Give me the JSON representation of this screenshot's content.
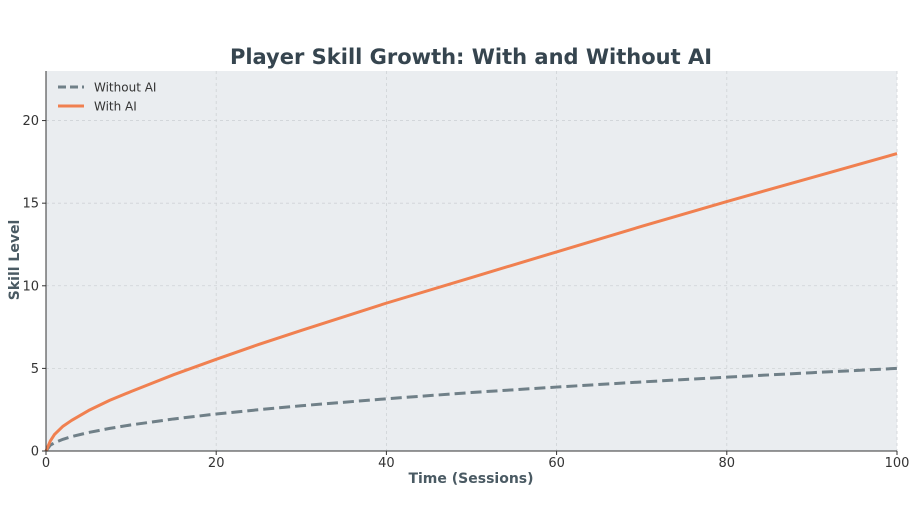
{
  "chart_data": {
    "type": "line",
    "title": "Player Skill Growth: With and Without AI",
    "xlabel": "Time (Sessions)",
    "ylabel": "Skill Level",
    "xlim": [
      0,
      100
    ],
    "ylim": [
      0,
      23
    ],
    "xticks": [
      0,
      20,
      40,
      60,
      80,
      100
    ],
    "yticks": [
      0,
      5,
      10,
      15,
      20
    ],
    "grid": true,
    "legend_position": "top-left",
    "background_color": "#eaedf0",
    "x": [
      0,
      0.5,
      1,
      2,
      3,
      5,
      7.5,
      10,
      15,
      20,
      25,
      30,
      40,
      50,
      60,
      70,
      80,
      90,
      100
    ],
    "series": [
      {
        "name": "Without AI",
        "style": "dashed",
        "color": "#708088",
        "values": [
          0,
          0.35,
          0.5,
          0.71,
          0.87,
          1.12,
          1.37,
          1.58,
          1.94,
          2.24,
          2.5,
          2.74,
          3.16,
          3.54,
          3.87,
          4.18,
          4.47,
          4.74,
          5.0
        ]
      },
      {
        "name": "With AI",
        "style": "solid",
        "color": "#f08050",
        "values": [
          0,
          0.6,
          1.0,
          1.5,
          1.85,
          2.45,
          3.07,
          3.6,
          4.62,
          5.55,
          6.45,
          7.3,
          8.95,
          10.5,
          12.05,
          13.6,
          15.1,
          16.55,
          18.0
        ]
      }
    ]
  }
}
